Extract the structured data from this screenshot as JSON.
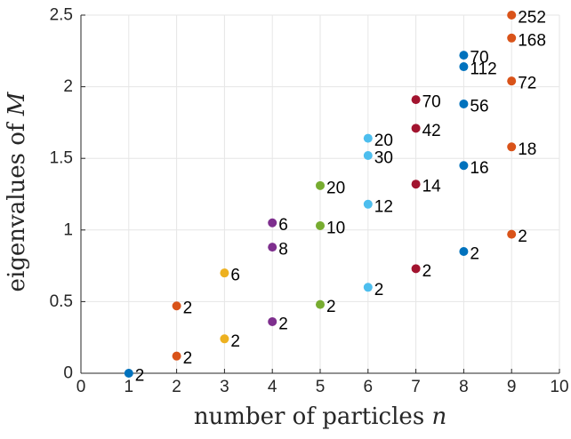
{
  "chart_data": {
    "type": "scatter",
    "title": "",
    "xlabel_text": "number of particles",
    "xlabel_var": "n",
    "ylabel_text": "eigenvalues of",
    "ylabel_var": "M",
    "xlim": [
      0,
      10
    ],
    "ylim": [
      0,
      2.5
    ],
    "xticks": [
      "0",
      "1",
      "2",
      "3",
      "4",
      "5",
      "6",
      "7",
      "8",
      "9",
      "10"
    ],
    "yticks": [
      "0",
      "0.5",
      "1",
      "1.5",
      "2",
      "2.5"
    ],
    "grid": true,
    "legend": false,
    "points": [
      {
        "x": 1,
        "y": 0.0,
        "label": "2",
        "color": "#0072BD"
      },
      {
        "x": 2,
        "y": 0.12,
        "label": "2",
        "color": "#D95319"
      },
      {
        "x": 2,
        "y": 0.47,
        "label": "2",
        "color": "#D95319"
      },
      {
        "x": 3,
        "y": 0.24,
        "label": "2",
        "color": "#EDB120"
      },
      {
        "x": 3,
        "y": 0.7,
        "label": "6",
        "color": "#EDB120"
      },
      {
        "x": 4,
        "y": 0.36,
        "label": "2",
        "color": "#7E2F8E"
      },
      {
        "x": 4,
        "y": 0.88,
        "label": "8",
        "color": "#7E2F8E"
      },
      {
        "x": 4,
        "y": 1.05,
        "label": "6",
        "color": "#7E2F8E"
      },
      {
        "x": 5,
        "y": 0.48,
        "label": "2",
        "color": "#77AC30"
      },
      {
        "x": 5,
        "y": 1.03,
        "label": "10",
        "color": "#77AC30"
      },
      {
        "x": 5,
        "y": 1.31,
        "label": "20",
        "color": "#77AC30"
      },
      {
        "x": 6,
        "y": 0.6,
        "label": "2",
        "color": "#4DBEEE"
      },
      {
        "x": 6,
        "y": 1.18,
        "label": "12",
        "color": "#4DBEEE"
      },
      {
        "x": 6,
        "y": 1.52,
        "label": "30",
        "color": "#4DBEEE"
      },
      {
        "x": 6,
        "y": 1.64,
        "label": "20",
        "color": "#4DBEEE"
      },
      {
        "x": 7,
        "y": 0.73,
        "label": "2",
        "color": "#A2142F"
      },
      {
        "x": 7,
        "y": 1.32,
        "label": "14",
        "color": "#A2142F"
      },
      {
        "x": 7,
        "y": 1.71,
        "label": "42",
        "color": "#A2142F"
      },
      {
        "x": 7,
        "y": 1.91,
        "label": "70",
        "color": "#A2142F"
      },
      {
        "x": 8,
        "y": 0.85,
        "label": "2",
        "color": "#0072BD"
      },
      {
        "x": 8,
        "y": 1.45,
        "label": "16",
        "color": "#0072BD"
      },
      {
        "x": 8,
        "y": 1.88,
        "label": "56",
        "color": "#0072BD"
      },
      {
        "x": 8,
        "y": 2.14,
        "label": "112",
        "color": "#0072BD"
      },
      {
        "x": 8,
        "y": 2.22,
        "label": "70",
        "color": "#0072BD"
      },
      {
        "x": 9,
        "y": 0.97,
        "label": "2",
        "color": "#D95319"
      },
      {
        "x": 9,
        "y": 1.58,
        "label": "18",
        "color": "#D95319"
      },
      {
        "x": 9,
        "y": 2.04,
        "label": "72",
        "color": "#D95319"
      },
      {
        "x": 9,
        "y": 2.34,
        "label": "168",
        "color": "#D95319"
      },
      {
        "x": 9,
        "y": 2.5,
        "label": "252",
        "color": "#D95319"
      }
    ]
  }
}
